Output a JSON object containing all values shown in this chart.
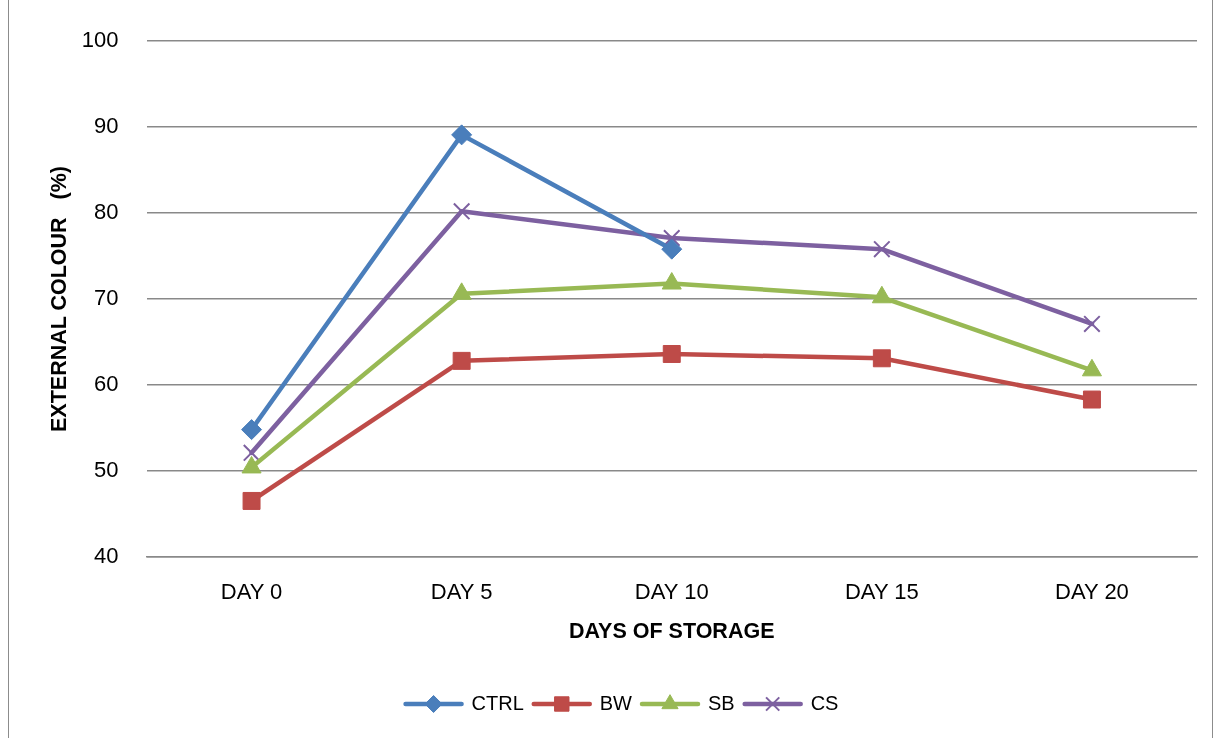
{
  "chart_data": {
    "type": "line",
    "xlabel": "DAYS OF STORAGE",
    "ylabel": "EXTERNAL COLOUR   (%)",
    "categories": [
      "DAY 0",
      "DAY 5",
      "DAY 10",
      "DAY 15",
      "DAY 20"
    ],
    "series": [
      {
        "name": "CTRL",
        "color": "#4a7ebb",
        "marker": "diamond",
        "values": [
          54.8,
          89.1,
          75.8,
          null,
          null
        ]
      },
      {
        "name": "BW",
        "color": "#be4b48",
        "marker": "square",
        "values": [
          46.5,
          62.8,
          63.6,
          63.1,
          58.3
        ]
      },
      {
        "name": "SB",
        "color": "#98b954",
        "marker": "triangle",
        "values": [
          50.4,
          70.6,
          71.8,
          70.2,
          61.7
        ]
      },
      {
        "name": "CS",
        "color": "#7d60a0",
        "marker": "cross",
        "values": [
          52.1,
          80.2,
          77.1,
          75.8,
          67.1
        ]
      }
    ],
    "ylim": [
      40,
      100
    ],
    "yticks": [
      40,
      50,
      60,
      70,
      80,
      90,
      100
    ],
    "grid": "y",
    "legend": "bottom",
    "line_style": "solid"
  }
}
